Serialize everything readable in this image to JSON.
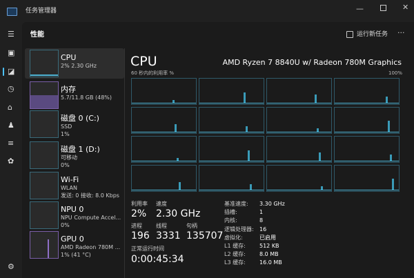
{
  "window": {
    "title": "任务管理器"
  },
  "header": {
    "title": "性能",
    "run_task": "运行新任务"
  },
  "sidebar": [
    {
      "name": "CPU",
      "lines": [
        "2% 2.30 GHz"
      ]
    },
    {
      "name": "内存",
      "lines": [
        "5.7/11.8 GB (48%)"
      ]
    },
    {
      "name": "磁盘 0 (C:)",
      "lines": [
        "SSD",
        "1%"
      ]
    },
    {
      "name": "磁盘 1 (D:)",
      "lines": [
        "可移动",
        "0%"
      ]
    },
    {
      "name": "Wi-Fi",
      "lines": [
        "WLAN",
        "发送: 0 接收: 8.0 Kbps"
      ]
    },
    {
      "name": "NPU 0",
      "lines": [
        "NPU Compute Accel...",
        "0%"
      ]
    },
    {
      "name": "GPU 0",
      "lines": [
        "AMD Radeon 780M ...",
        "1% (41 °C)"
      ]
    }
  ],
  "main": {
    "title": "CPU",
    "model": "AMD Ryzen 7 8840U w/ Radeon 780M Graphics",
    "graph_label": "60 秒内的利用率 %",
    "graph_max": "100%",
    "stats_rows": [
      [
        {
          "label": "利用率",
          "value": "2%"
        },
        {
          "label": "速度",
          "value": "2.30 GHz"
        }
      ],
      [
        {
          "label": "进程",
          "value": "196"
        },
        {
          "label": "线程",
          "value": "3331"
        },
        {
          "label": "句柄",
          "value": "135707"
        }
      ]
    ],
    "uptime": {
      "label": "正常运行时间",
      "value": "0:00:45:34"
    },
    "details": [
      {
        "label": "基准速度:",
        "value": "3.30 GHz"
      },
      {
        "label": "插槽:",
        "value": "1"
      },
      {
        "label": "内核:",
        "value": "8"
      },
      {
        "label": "逻辑处理器:",
        "value": "16"
      },
      {
        "label": "虚拟化:",
        "value": "已启用"
      },
      {
        "label": "L1 缓存:",
        "value": "512 KB"
      },
      {
        "label": "L2 缓存:",
        "value": "8.0 MB"
      },
      {
        "label": "L3 缓存:",
        "value": "16.0 MB"
      }
    ]
  }
}
